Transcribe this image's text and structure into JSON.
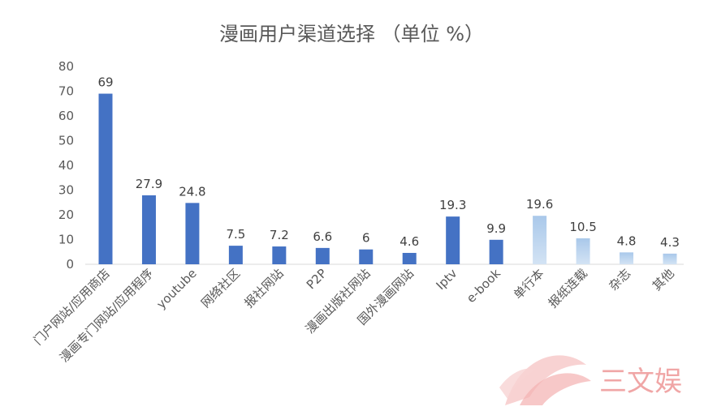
{
  "chart_data": {
    "type": "bar",
    "title": "漫画用户渠道选择 （单位 %）",
    "xlabel": "",
    "ylabel": "",
    "ylim": [
      0,
      80
    ],
    "yticks": [
      0,
      10,
      20,
      30,
      40,
      50,
      60,
      70,
      80
    ],
    "grid": false,
    "legend": "none",
    "categories": [
      "门户网站/应用商店",
      "漫画专门网站/应用程序",
      "youtube",
      "网络社区",
      "报社网站",
      "P2P",
      "漫画出版社网站",
      "国外漫画网站",
      "Iptv",
      "e-book",
      "单行本",
      "报纸连载",
      "杂志",
      "其他"
    ],
    "values": [
      69,
      27.9,
      24.8,
      7.5,
      7.2,
      6.6,
      6,
      4.6,
      19.3,
      9.9,
      19.6,
      10.5,
      4.8,
      4.3
    ],
    "value_labels": [
      "69",
      "27.9",
      "24.8",
      "7.5",
      "7.2",
      "6.6",
      "6",
      "4.6",
      "19.3",
      "9.9",
      "19.6",
      "10.5",
      "4.8",
      "4.3"
    ],
    "bar_styles": [
      "solid",
      "solid",
      "solid",
      "solid",
      "solid",
      "solid",
      "solid",
      "solid",
      "solid",
      "solid",
      "light",
      "light",
      "light",
      "light"
    ],
    "colors": {
      "solid": "#4472c4",
      "light_top": "#a9c8ea",
      "light_bottom": "#d3e3f4",
      "text": "#595959",
      "axis": "#d9d9d9"
    }
  },
  "watermark": {
    "text": "三文娱",
    "color": "#f0a6a6"
  }
}
